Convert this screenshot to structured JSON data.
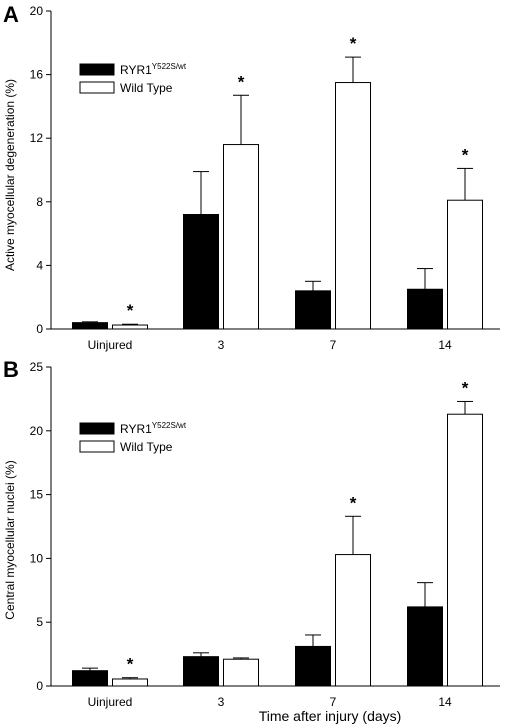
{
  "chart_data": [
    {
      "type": "bar",
      "panel_label": "A",
      "categories": [
        "Uinjured",
        "3",
        "7",
        "14"
      ],
      "ylabel": "Active myocellular degeneration (%)",
      "xlabel": "",
      "ylim": [
        0,
        20
      ],
      "yticks": [
        "0",
        "4",
        "8",
        "12",
        "16",
        "20"
      ],
      "yticks_values": [
        0,
        4,
        8,
        12,
        16,
        20
      ],
      "series": [
        {
          "name_base": "RYR1",
          "name_sup": "Y522S/wt",
          "color": "#000000",
          "values": [
            0.4,
            7.2,
            2.4,
            2.5
          ],
          "errors": [
            0.05,
            2.7,
            0.6,
            1.3
          ]
        },
        {
          "name_base": "",
          "name_sup": "",
          "name": "Wild Type",
          "color": "#ffffff",
          "values": [
            0.25,
            11.6,
            15.5,
            8.1
          ],
          "errors": [
            0.05,
            3.1,
            1.6,
            2.0
          ]
        }
      ],
      "significance": [
        {
          "category_index": 0,
          "series_index": 1,
          "label": "*"
        },
        {
          "category_index": 1,
          "series_index": 1,
          "label": "*"
        },
        {
          "category_index": 2,
          "series_index": 1,
          "label": "*"
        },
        {
          "category_index": 3,
          "series_index": 1,
          "label": "*"
        }
      ],
      "legend_position": "top-left"
    },
    {
      "type": "bar",
      "panel_label": "B",
      "categories": [
        "Uinjured",
        "3",
        "7",
        "14"
      ],
      "ylabel": "Central myocellular nuclei (%)",
      "xlabel": "Time after injury (days)",
      "ylim": [
        0,
        25
      ],
      "yticks": [
        "0",
        "5",
        "10",
        "15",
        "20",
        "25"
      ],
      "yticks_values": [
        0,
        5,
        10,
        15,
        20,
        25
      ],
      "series": [
        {
          "name_base": "RYR1",
          "name_sup": "Y522S/wt",
          "color": "#000000",
          "values": [
            1.2,
            2.3,
            3.1,
            6.2
          ],
          "errors": [
            0.2,
            0.3,
            0.9,
            1.9
          ]
        },
        {
          "name_base": "",
          "name_sup": "",
          "name": "Wild Type",
          "color": "#ffffff",
          "values": [
            0.55,
            2.1,
            10.3,
            21.3
          ],
          "errors": [
            0.1,
            0.1,
            3.0,
            1.0
          ]
        }
      ],
      "significance": [
        {
          "category_index": 0,
          "series_index": 1,
          "label": "*"
        },
        {
          "category_index": 2,
          "series_index": 1,
          "label": "*"
        },
        {
          "category_index": 3,
          "series_index": 1,
          "label": "*"
        }
      ],
      "legend_position": "top-left"
    }
  ]
}
